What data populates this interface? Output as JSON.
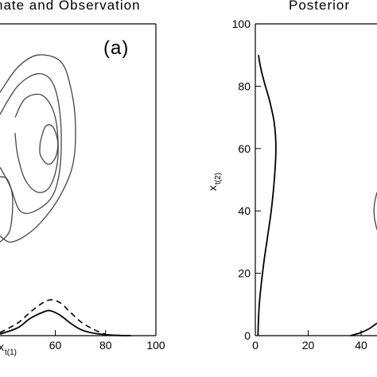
{
  "chart_data": [
    {
      "type": "line",
      "panel_id": "left",
      "title": "nate and Observation",
      "panel_label": "(a)",
      "xlabel": "x",
      "xlabel_sub": "t(1)",
      "ylabel": "",
      "xlim": [
        38,
        100
      ],
      "ylim": [
        0,
        100
      ],
      "x_ticks": [
        60,
        80,
        100
      ],
      "x_tick_labels": [
        "60",
        "80",
        "100"
      ],
      "series": [
        {
          "style": "solid",
          "points": [
            [
              38,
              0.5
            ],
            [
              45,
              2.5
            ],
            [
              50,
              5.5
            ],
            [
              55,
              7.5
            ],
            [
              58,
              8.0
            ],
            [
              62,
              6.5
            ],
            [
              66,
              4.0
            ],
            [
              70,
              2.0
            ],
            [
              74,
              1.0
            ],
            [
              80,
              0.3
            ],
            [
              86,
              0.05
            ],
            [
              90,
              0.0
            ]
          ]
        },
        {
          "style": "dashed",
          "points": [
            [
              38,
              1.0
            ],
            [
              45,
              4.0
            ],
            [
              50,
              7.5
            ],
            [
              54,
              10.0
            ],
            [
              58,
              11.5
            ],
            [
              62,
              10.5
            ],
            [
              66,
              7.5
            ],
            [
              70,
              4.5
            ],
            [
              74,
              2.5
            ],
            [
              78,
              1.0
            ],
            [
              80,
              0.5
            ]
          ]
        }
      ],
      "contours": [
        {
          "points": [
            [
              38,
              78
            ],
            [
              45,
              86
            ],
            [
              53,
              90
            ],
            [
              62,
              88
            ],
            [
              66,
              80
            ],
            [
              68,
              68
            ],
            [
              67,
              55
            ],
            [
              62,
              45
            ],
            [
              55,
              37
            ],
            [
              48,
              32
            ],
            [
              42,
              30
            ],
            [
              38,
              32
            ]
          ]
        },
        {
          "points": [
            [
              38,
              71
            ],
            [
              45,
              80
            ],
            [
              53,
              84
            ],
            [
              59,
              81
            ],
            [
              62,
              70
            ],
            [
              62,
              55
            ],
            [
              59,
              45
            ],
            [
              52,
              40
            ],
            [
              46,
              40
            ],
            [
              42,
              48
            ],
            [
              38,
              54
            ]
          ]
        },
        {
          "points": [
            [
              44,
              70
            ],
            [
              48,
              76
            ],
            [
              55,
              77
            ],
            [
              60,
              70
            ],
            [
              61,
              57
            ],
            [
              58,
              48
            ],
            [
              53,
              46
            ],
            [
              48,
              50
            ],
            [
              45,
              58
            ],
            [
              44,
              65
            ]
          ]
        },
        {
          "points": [
            [
              54,
              62
            ],
            [
              56,
              67
            ],
            [
              59,
              67
            ],
            [
              61,
              62
            ],
            [
              60,
              57
            ],
            [
              57,
              55
            ],
            [
              54,
              58
            ],
            [
              54,
              62
            ]
          ]
        },
        {
          "points": [
            [
              38,
              51
            ],
            [
              41,
              50
            ],
            [
              43,
              44
            ],
            [
              42,
              34
            ],
            [
              38,
              30
            ]
          ]
        }
      ]
    },
    {
      "type": "line",
      "panel_id": "right",
      "title": "Posterior",
      "xlabel": "",
      "ylabel": "x",
      "ylabel_sub": "t(2)",
      "xlim": [
        0,
        46
      ],
      "ylim": [
        0,
        100
      ],
      "x_ticks": [
        0,
        20,
        40
      ],
      "x_tick_labels": [
        "0",
        "20",
        "40"
      ],
      "y_ticks": [
        0,
        20,
        40,
        60,
        80,
        100
      ],
      "y_tick_labels": [
        "0",
        "20",
        "40",
        "60",
        "80",
        "100"
      ],
      "series": [
        {
          "style": "solid",
          "points": [
            [
              1.0,
              0
            ],
            [
              1.5,
              10
            ],
            [
              3.0,
              22
            ],
            [
              4.5,
              31
            ],
            [
              6.0,
              40
            ],
            [
              7.2,
              50
            ],
            [
              7.8,
              60
            ],
            [
              7.2,
              68
            ],
            [
              5.5,
              75
            ],
            [
              3.5,
              81
            ],
            [
              2.0,
              86
            ],
            [
              1.2,
              90
            ]
          ]
        },
        {
          "style": "solid",
          "points": [
            [
              36,
              0
            ],
            [
              40,
              1.0
            ],
            [
              43,
              2.2
            ],
            [
              46,
              4.0
            ]
          ]
        }
      ],
      "contours": [
        {
          "points": [
            [
              46,
              46
            ],
            [
              45,
              42
            ],
            [
              45,
              38
            ],
            [
              46,
              34
            ]
          ]
        }
      ]
    }
  ]
}
